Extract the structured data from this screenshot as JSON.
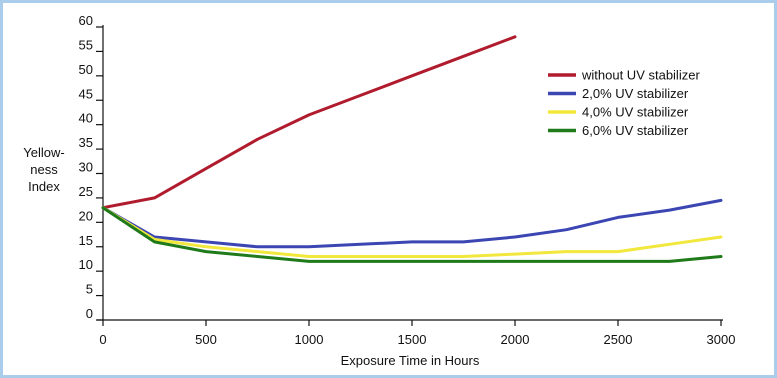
{
  "chart_data": {
    "type": "line",
    "xlabel": "Exposure Time in Hours",
    "ylabel_lines": [
      "Yellow-",
      "ness",
      "Index"
    ],
    "xlim": [
      0,
      3000
    ],
    "ylim": [
      0,
      60
    ],
    "xticks": [
      0,
      500,
      1000,
      1500,
      2000,
      2500,
      3000
    ],
    "yticks": [
      0,
      5,
      10,
      15,
      20,
      25,
      30,
      35,
      40,
      45,
      50,
      55,
      60
    ],
    "grid": false,
    "legend_position": "top-right",
    "series": [
      {
        "name": "without UV stabilizer",
        "color": "#b01c2e",
        "points": [
          [
            0,
            23
          ],
          [
            250,
            25
          ],
          [
            500,
            31
          ],
          [
            750,
            37
          ],
          [
            1000,
            42
          ],
          [
            1250,
            46
          ],
          [
            1500,
            50
          ],
          [
            1750,
            54
          ],
          [
            2000,
            58
          ]
        ]
      },
      {
        "name": "2,0% UV stabilizer",
        "color": "#3b46b3",
        "points": [
          [
            0,
            23
          ],
          [
            250,
            17
          ],
          [
            500,
            16
          ],
          [
            750,
            15
          ],
          [
            1000,
            15
          ],
          [
            1250,
            15.5
          ],
          [
            1500,
            16
          ],
          [
            1750,
            16
          ],
          [
            2000,
            17
          ],
          [
            2250,
            18.5
          ],
          [
            2500,
            21
          ],
          [
            2750,
            22.5
          ],
          [
            3000,
            24.5
          ]
        ]
      },
      {
        "name": "4,0% UV stabilizer",
        "color": "#f2e73c",
        "points": [
          [
            0,
            23
          ],
          [
            250,
            16.5
          ],
          [
            500,
            15
          ],
          [
            750,
            14
          ],
          [
            1000,
            13
          ],
          [
            1250,
            13
          ],
          [
            1500,
            13
          ],
          [
            1750,
            13
          ],
          [
            2000,
            13.5
          ],
          [
            2250,
            14
          ],
          [
            2500,
            14
          ],
          [
            2750,
            15.5
          ],
          [
            3000,
            17
          ]
        ]
      },
      {
        "name": "6,0% UV stabilizer",
        "color": "#1f7a1a",
        "points": [
          [
            0,
            23
          ],
          [
            250,
            16
          ],
          [
            500,
            14
          ],
          [
            750,
            13
          ],
          [
            1000,
            12
          ],
          [
            1250,
            12
          ],
          [
            1500,
            12
          ],
          [
            1750,
            12
          ],
          [
            2000,
            12
          ],
          [
            2250,
            12
          ],
          [
            2500,
            12
          ],
          [
            2750,
            12
          ],
          [
            3000,
            13
          ]
        ]
      }
    ]
  }
}
